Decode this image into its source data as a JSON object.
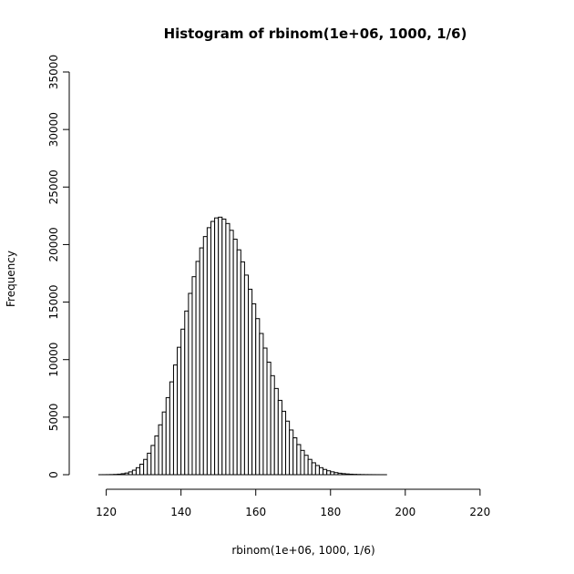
{
  "chart_data": {
    "type": "bar",
    "title": "Histogram of rbinom(1e+06, 1000, 1/6)",
    "xlabel": "rbinom(1e+06, 1000, 1/6)",
    "ylabel": "Frequency",
    "xlim": [
      114,
      231
    ],
    "ylim": [
      0,
      35000
    ],
    "xticks": [
      120,
      140,
      160,
      180,
      200,
      220
    ],
    "yticks": [
      0,
      5000,
      10000,
      15000,
      20000,
      25000,
      30000,
      35000
    ],
    "bin_width": 1,
    "bin_start": 115,
    "values": [
      0,
      0,
      0,
      1,
      3,
      6,
      13,
      25,
      46,
      84,
      144,
      245,
      391,
      607,
      912,
      1327,
      1868,
      2542,
      3370,
      4334,
      5449,
      6698,
      8068,
      9535,
      11073,
      12649,
      14225,
      15758,
      17209,
      18538,
      19711,
      20696,
      21468,
      22011,
      22316,
      22382,
      22216,
      21829,
      21238,
      20466,
      19544,
      18497,
      17347,
      16120,
      14850,
      13564,
      12273,
      11006,
      9781,
      8605,
      7493,
      6461,
      5512,
      4653,
      3884,
      3206,
      2618,
      2112,
      1686,
      1330,
      1036,
      798,
      607,
      456,
      339,
      249,
      180,
      129,
      91,
      63,
      43,
      30,
      20,
      13,
      9,
      6,
      4,
      2,
      1,
      1,
      0,
      0,
      0,
      0,
      0,
      0,
      0,
      0,
      0,
      0,
      0,
      0,
      0,
      0,
      0,
      0,
      0,
      0,
      0,
      0,
      0,
      0,
      0,
      0,
      0,
      0,
      0,
      0,
      0,
      0,
      0,
      0,
      0,
      0,
      0
    ],
    "grid": false,
    "legend": "none"
  }
}
